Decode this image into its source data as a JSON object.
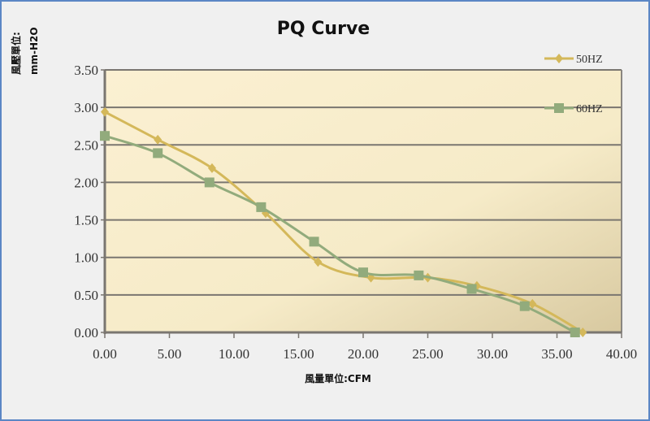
{
  "chart_data": {
    "type": "line",
    "title": "PQ Curve",
    "xlabel": "風量單位:CFM",
    "ylabel": "風壓單位:",
    "ylabel_unit": "mm-H2O",
    "xlim": [
      0,
      40
    ],
    "ylim": [
      0,
      3.5
    ],
    "grid": true,
    "legend_placement": "top-right",
    "x_ticks": [
      "0.00",
      "5.00",
      "10.00",
      "15.00",
      "20.00",
      "25.00",
      "30.00",
      "35.00",
      "40.00"
    ],
    "y_ticks": [
      "0.00",
      "0.50",
      "1.00",
      "1.50",
      "2.00",
      "2.50",
      "3.00",
      "3.50"
    ],
    "series": [
      {
        "name": "50HZ",
        "color": "#d4b85a",
        "marker": "diamond",
        "x": [
          0,
          4.1,
          8.3,
          12.45,
          16.5,
          20.6,
          25.0,
          28.8,
          33.1,
          37.0
        ],
        "y": [
          2.94,
          2.57,
          2.19,
          1.59,
          0.94,
          0.73,
          0.73,
          0.62,
          0.38,
          0.0
        ]
      },
      {
        "name": "60HZ",
        "color": "#92ab7c",
        "marker": "square",
        "x": [
          0,
          4.1,
          8.1,
          12.1,
          16.2,
          20.0,
          24.3,
          28.4,
          32.5,
          36.4
        ],
        "y": [
          2.62,
          2.39,
          2.0,
          1.67,
          1.21,
          0.8,
          0.76,
          0.58,
          0.35,
          0.0
        ]
      }
    ]
  }
}
